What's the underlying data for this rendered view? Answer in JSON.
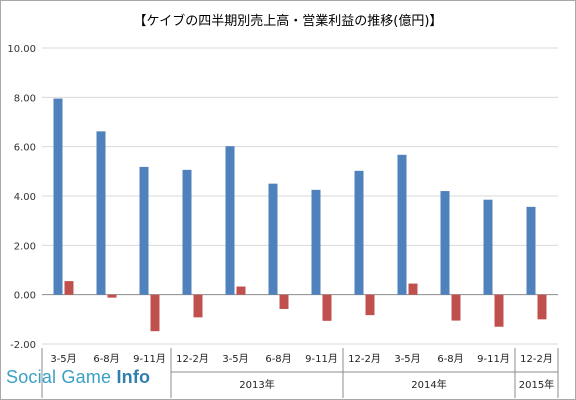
{
  "chart_data": {
    "type": "bar",
    "title": "【ケイブの四半期別売上高・営業利益の推移(億円)】",
    "categories": [
      "3-5月",
      "6-8月",
      "9-11月",
      "12-2月",
      "3-5月",
      "6-8月",
      "9-11月",
      "12-2月",
      "3-5月",
      "6-8月",
      "9-11月",
      "12-2月"
    ],
    "year_groups": [
      {
        "label": "",
        "count": 3
      },
      {
        "label": "2013年",
        "count": 4
      },
      {
        "label": "2014年",
        "count": 4
      },
      {
        "label": "2015年",
        "count": 1
      }
    ],
    "series": [
      {
        "name": "",
        "color": "#4f81bd",
        "values": [
          7.95,
          6.62,
          5.18,
          5.06,
          6.02,
          4.5,
          4.25,
          5.02,
          5.67,
          4.2,
          3.85,
          3.56
        ]
      },
      {
        "name": "",
        "color": "#c0504d",
        "values": [
          0.55,
          -0.12,
          -1.48,
          -0.92,
          0.33,
          -0.58,
          -1.06,
          -0.83,
          0.45,
          -1.05,
          -1.3,
          -1.0
        ]
      }
    ],
    "ylim": [
      -2,
      10
    ],
    "y_ticks": [
      "-2.00",
      "0.00",
      "2.00",
      "4.00",
      "6.00",
      "8.00",
      "10.00"
    ],
    "grid": true,
    "xlabel": "",
    "ylabel": ""
  },
  "watermark": {
    "text_main": "Social Game ",
    "text_accent": "Info"
  }
}
